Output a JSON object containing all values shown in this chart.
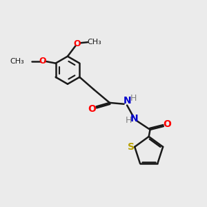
{
  "background_color": "#ebebeb",
  "bond_color": "#1a1a1a",
  "bond_width": 1.8,
  "atom_colors": {
    "O": "#ff0000",
    "N": "#0000cc",
    "S": "#b8a000",
    "H": "#808080"
  },
  "font_size": 9,
  "figsize": [
    3.0,
    3.0
  ],
  "dpi": 100
}
